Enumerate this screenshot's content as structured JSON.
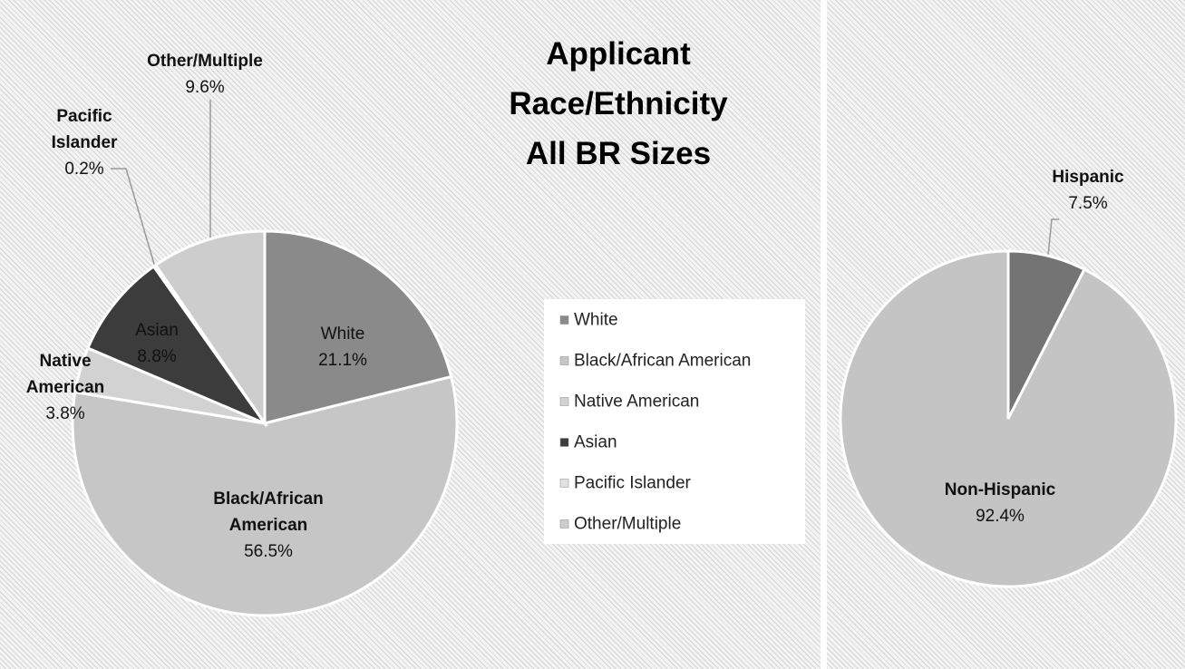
{
  "chart_data": [
    {
      "type": "pie",
      "title": [
        "Applicant",
        "Race/Ethnicity",
        "All BR Sizes"
      ],
      "categories": [
        "White",
        "Black/African American",
        "Native American",
        "Asian",
        "Pacific Islander",
        "Other/Multiple"
      ],
      "values": [
        21.1,
        56.5,
        3.8,
        8.8,
        0.2,
        9.6
      ],
      "value_labels": [
        "21.1%",
        "56.5%",
        "3.8%",
        "8.8%",
        "0.2%",
        "9.6%"
      ],
      "colors": [
        "#8a8a8a",
        "#c6c6c6",
        "#d2d2d2",
        "#3c3c3c",
        "#e2e2e2",
        "#cdcdcd"
      ],
      "legend": "right"
    },
    {
      "type": "pie",
      "categories": [
        "Hispanic",
        "Non-Hispanic"
      ],
      "values": [
        7.5,
        92.4
      ],
      "value_labels": [
        "7.5%",
        "92.4%"
      ],
      "colors": [
        "#747474",
        "#c4c4c4"
      ]
    }
  ]
}
